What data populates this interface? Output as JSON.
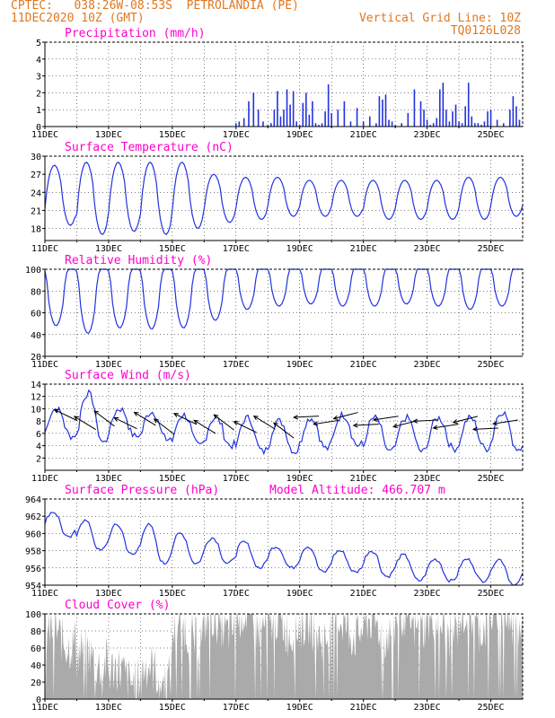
{
  "header": {
    "line1_left": "CPTEC:   038:26W-08:53S  PETROLANDIA (PE)",
    "line2_left": "11DEC2020 10Z (GMT)",
    "line2_right": "Vertical Grid Line: 10Z",
    "line3_right": "TQ0126L028",
    "text_color": "#e07820"
  },
  "colors": {
    "panel_title": "#ff00cc",
    "line_series": "#2233dd",
    "cloud_fill": "#aaaaaa",
    "wind_arrow": "#000000",
    "axis": "#000000",
    "grid": "#000000"
  },
  "x_axis": {
    "start": "11DEC2020 10Z",
    "end": "26DEC2020 10Z",
    "tick_labels": [
      "11DEC",
      "13DEC",
      "15DEC",
      "17DEC",
      "19DEC",
      "21DEC",
      "23DEC",
      "25DEC"
    ],
    "daily_vertical_grid": true
  },
  "chart_data": [
    {
      "type": "bar",
      "title": "Precipitation (mm/h)",
      "ylim": [
        0,
        5
      ],
      "yticks": [
        0,
        1,
        2,
        3,
        4,
        5
      ],
      "x_days": [
        6.0,
        6.1,
        6.25,
        6.4,
        6.55,
        6.7,
        6.85,
        7.0,
        7.1,
        7.2,
        7.3,
        7.4,
        7.5,
        7.6,
        7.7,
        7.8,
        7.9,
        8.0,
        8.1,
        8.2,
        8.3,
        8.4,
        8.5,
        8.6,
        8.7,
        8.8,
        8.9,
        9.0,
        9.2,
        9.4,
        9.6,
        9.8,
        10.0,
        10.2,
        10.4,
        10.5,
        10.6,
        10.7,
        10.8,
        10.9,
        11.0,
        11.2,
        11.4,
        11.6,
        11.8,
        11.9,
        12.0,
        12.1,
        12.2,
        12.3,
        12.4,
        12.5,
        12.6,
        12.7,
        12.8,
        12.9,
        13.0,
        13.1,
        13.2,
        13.3,
        13.4,
        13.5,
        13.6,
        13.7,
        13.8,
        13.9,
        14.0,
        14.2,
        14.4,
        14.6,
        14.7,
        14.8,
        14.9
      ],
      "values": [
        0.2,
        0.3,
        0.5,
        1.5,
        2.0,
        1.0,
        0.3,
        0.1,
        0.2,
        1.0,
        2.1,
        0.6,
        1.0,
        2.2,
        1.3,
        2.1,
        0.3,
        0.1,
        1.4,
        2.0,
        0.7,
        1.5,
        0.2,
        0.1,
        0.2,
        0.9,
        2.5,
        0.8,
        1.0,
        1.5,
        0.3,
        1.1,
        0.3,
        0.6,
        0.2,
        1.8,
        1.6,
        1.9,
        0.4,
        0.3,
        0.1,
        0.2,
        0.8,
        2.2,
        1.5,
        1.0,
        0.4,
        0.1,
        0.2,
        0.5,
        2.2,
        2.6,
        1.0,
        0.3,
        0.9,
        1.3,
        0.3,
        0.2,
        1.2,
        2.6,
        0.6,
        0.2,
        0.2,
        0.1,
        0.3,
        0.9,
        1.0,
        0.4,
        0.2,
        1.0,
        1.8,
        1.2,
        0.4
      ]
    },
    {
      "type": "line",
      "title": "Surface Temperature (nC)",
      "ylim": [
        16,
        30
      ],
      "yticks": [
        18,
        21,
        24,
        27,
        30
      ],
      "daily_min": [
        18.5,
        17.0,
        17.5,
        17.0,
        18.0,
        19.0,
        19.5,
        20.0,
        20.0,
        20.0,
        19.5,
        19.5,
        19.5,
        19.5,
        20.0
      ],
      "daily_max": [
        28.5,
        29.0,
        29.0,
        29.0,
        29.0,
        27.0,
        26.5,
        26.5,
        26.0,
        26.0,
        26.0,
        26.0,
        26.0,
        26.5,
        26.5
      ],
      "line_color": "#2233dd"
    },
    {
      "type": "line",
      "title": "Relative Humidity (%)",
      "ylim": [
        20,
        100
      ],
      "yticks": [
        20,
        40,
        60,
        80,
        100
      ],
      "daily_min": [
        40,
        33,
        38,
        37,
        38,
        45,
        55,
        58,
        60,
        58,
        58,
        60,
        58,
        55,
        58
      ],
      "daily_max": [
        100,
        100,
        100,
        100,
        100,
        100,
        100,
        100,
        100,
        100,
        100,
        100,
        100,
        100,
        100
      ],
      "line_color": "#2233dd"
    },
    {
      "type": "line",
      "title": "Surface Wind (m/s)",
      "ylim": [
        0,
        14
      ],
      "yticks": [
        2,
        4,
        6,
        8,
        10,
        12,
        14
      ],
      "daily_min": [
        5.5,
        4.5,
        5.5,
        5.0,
        4.0,
        4.0,
        3.0,
        3.0,
        3.5,
        4.0,
        3.0,
        3.0,
        3.5,
        3.5,
        3.5
      ],
      "daily_max": [
        10.0,
        12.5,
        10.0,
        9.5,
        9.0,
        8.5,
        8.5,
        8.0,
        8.5,
        9.0,
        8.5,
        8.5,
        8.5,
        8.5,
        9.5
      ],
      "line_color": "#2233dd",
      "wind_vectors_per_day": 1.5
    },
    {
      "type": "line",
      "title": "Surface Pressure (hPa)",
      "annotation": "Model Altitude: 466.707  m",
      "ylim": [
        954,
        964
      ],
      "yticks": [
        954,
        956,
        958,
        960,
        962,
        964
      ],
      "daily_min": [
        959.5,
        958.0,
        957.5,
        956.5,
        956.5,
        956.5,
        956.0,
        956.0,
        955.5,
        955.5,
        955.0,
        954.5,
        954.5,
        954.5,
        954.0
      ],
      "daily_max": [
        962.5,
        961.5,
        961.0,
        961.0,
        960.0,
        959.5,
        959.0,
        958.5,
        958.5,
        958.0,
        958.0,
        957.5,
        957.0,
        957.0,
        957.0
      ],
      "line_color": "#2233dd"
    },
    {
      "type": "area",
      "title": "Cloud Cover (%)",
      "ylim": [
        0,
        100
      ],
      "yticks": [
        0,
        20,
        40,
        60,
        80,
        100
      ],
      "daily_mean": [
        72,
        48,
        28,
        30,
        78,
        88,
        92,
        86,
        80,
        84,
        84,
        90,
        86,
        92,
        96
      ],
      "fill_color": "#aaaaaa"
    }
  ]
}
